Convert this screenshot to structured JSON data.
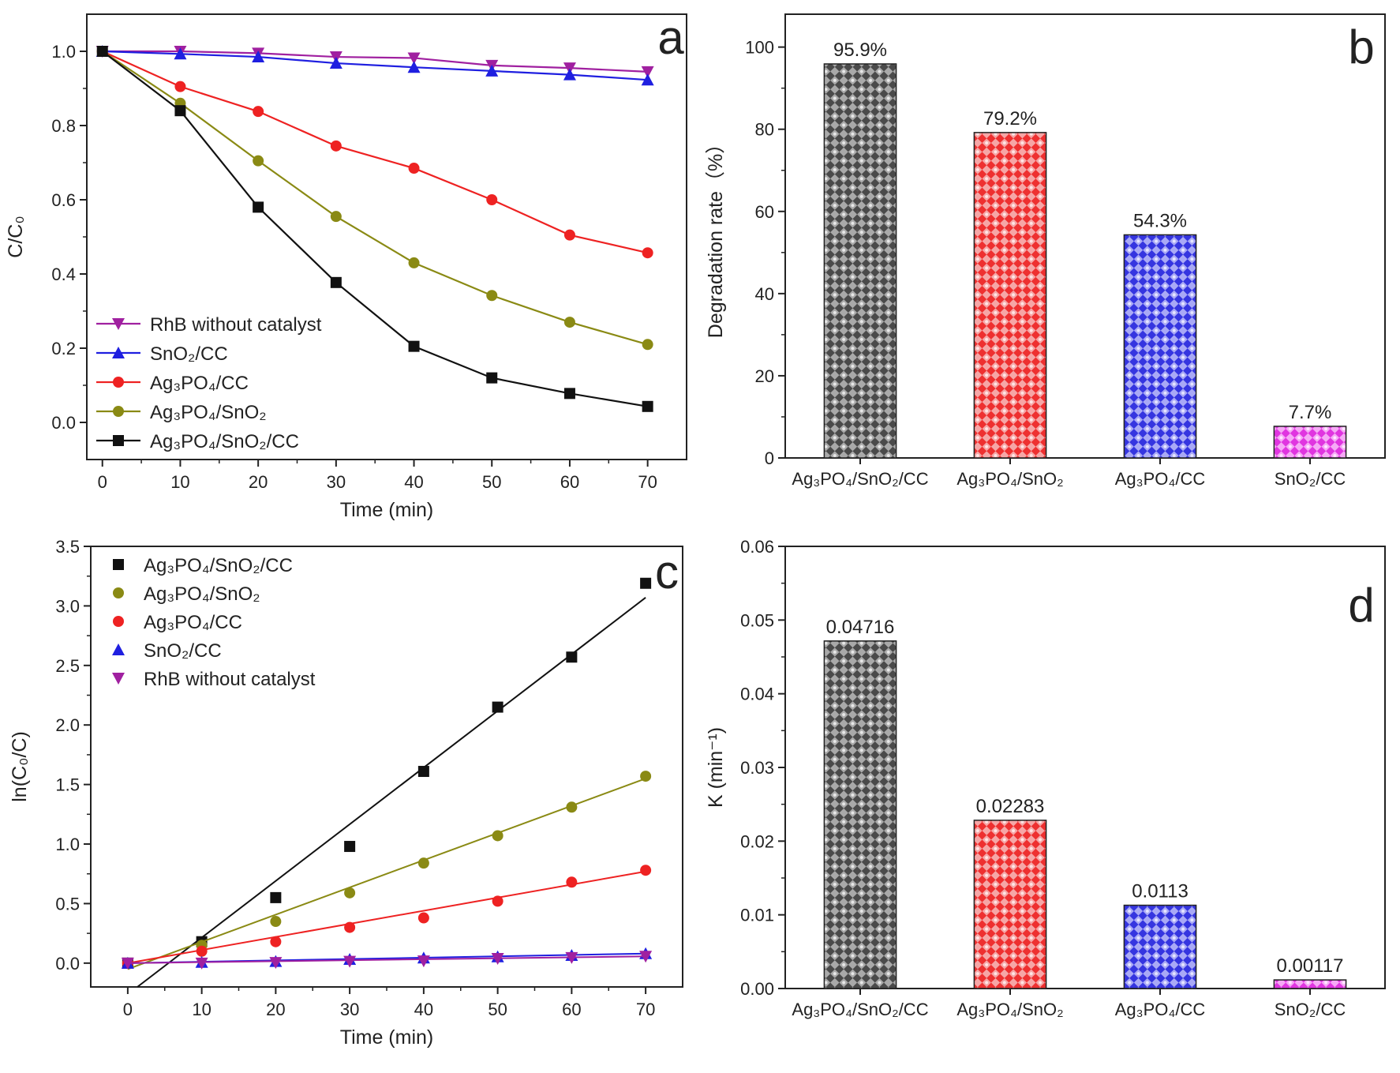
{
  "chart_data": [
    {
      "panel": "a",
      "type": "line",
      "xlabel": "Time (min)",
      "ylabel": "C/C₀",
      "xlim": [
        -2,
        75
      ],
      "ylim": [
        -0.1,
        1.1
      ],
      "xticks": [
        0,
        10,
        20,
        30,
        40,
        50,
        60,
        70
      ],
      "yticks": [
        0.0,
        0.2,
        0.4,
        0.6,
        0.8,
        1.0
      ],
      "x": [
        0,
        10,
        20,
        30,
        40,
        50,
        60,
        70
      ],
      "legend_position": "bottom-left",
      "series": [
        {
          "name": "RhB without catalyst",
          "color": "#a020a0",
          "marker": "triangle-down",
          "values": [
            1.0,
            1.0,
            0.995,
            0.985,
            0.982,
            0.962,
            0.955,
            0.945
          ]
        },
        {
          "name": "SnO₂/CC",
          "color": "#1f1fe0",
          "marker": "triangle-up",
          "values": [
            1.0,
            0.993,
            0.985,
            0.968,
            0.957,
            0.947,
            0.937,
            0.923
          ]
        },
        {
          "name": "Ag₃PO₄/CC",
          "color": "#ee2222",
          "marker": "circle",
          "values": [
            1.0,
            0.905,
            0.838,
            0.745,
            0.685,
            0.6,
            0.505,
            0.457
          ]
        },
        {
          "name": "Ag₃PO₄/SnO₂",
          "color": "#8a8a14",
          "marker": "circle",
          "values": [
            1.0,
            0.86,
            0.705,
            0.555,
            0.43,
            0.342,
            0.27,
            0.21
          ]
        },
        {
          "name": "Ag₃PO₄/SnO₂/CC",
          "color": "#111111",
          "marker": "square",
          "values": [
            1.0,
            0.84,
            0.58,
            0.377,
            0.205,
            0.12,
            0.078,
            0.043
          ]
        }
      ]
    },
    {
      "panel": "b",
      "type": "bar",
      "ylabel": "Degradation rate（%）",
      "ylim": [
        0,
        108
      ],
      "yticks": [
        0,
        20,
        40,
        60,
        80,
        100
      ],
      "categories": [
        "Ag₃PO₄/SnO₂/CC",
        "Ag₃PO₄/SnO₂",
        "Ag₃PO₄/CC",
        "SnO₂/CC"
      ],
      "values": [
        95.9,
        79.2,
        54.3,
        7.7
      ],
      "data_labels": [
        "95.9%",
        "79.2%",
        "54.3%",
        "7.7%"
      ],
      "colors": [
        "#777777",
        "#ee4444",
        "#4444ee",
        "#ee44ee"
      ]
    },
    {
      "panel": "c",
      "type": "scatter",
      "xlabel": "Time (min)",
      "ylabel": "ln(C₀/C)",
      "xlim": [
        -5,
        75
      ],
      "ylim": [
        -0.2,
        3.5
      ],
      "xticks": [
        0,
        10,
        20,
        30,
        40,
        50,
        60,
        70
      ],
      "yticks": [
        0.0,
        0.5,
        1.0,
        1.5,
        2.0,
        2.5,
        3.0,
        3.5
      ],
      "x": [
        0,
        10,
        20,
        30,
        40,
        50,
        60,
        70
      ],
      "legend_position": "top-left",
      "series": [
        {
          "name": "Ag₃PO₄/SnO₂/CC",
          "color": "#111111",
          "marker": "square",
          "values": [
            0.0,
            0.18,
            0.55,
            0.98,
            1.61,
            2.15,
            2.57,
            3.19
          ],
          "fit_line": [
            [
              1.3,
              -0.2
            ],
            [
              70,
              3.07
            ]
          ]
        },
        {
          "name": "Ag₃PO₄/SnO₂",
          "color": "#8a8a14",
          "marker": "circle",
          "values": [
            0.0,
            0.15,
            0.35,
            0.59,
            0.84,
            1.07,
            1.31,
            1.57
          ],
          "fit_line": [
            [
              0,
              -0.05
            ],
            [
              70,
              1.55
            ]
          ]
        },
        {
          "name": "Ag₃PO₄/CC",
          "color": "#ee2222",
          "marker": "circle",
          "values": [
            0.0,
            0.1,
            0.18,
            0.3,
            0.38,
            0.52,
            0.68,
            0.78
          ],
          "fit_line": [
            [
              0,
              0.0
            ],
            [
              70,
              0.77
            ]
          ]
        },
        {
          "name": "SnO₂/CC",
          "color": "#1f1fe0",
          "marker": "triangle-up",
          "values": [
            0.0,
            0.007,
            0.015,
            0.032,
            0.044,
            0.054,
            0.065,
            0.08
          ],
          "fit_line": [
            [
              0,
              0.0
            ],
            [
              70,
              0.08
            ]
          ]
        },
        {
          "name": "RhB without catalyst",
          "color": "#a020a0",
          "marker": "triangle-down",
          "values": [
            0.0,
            0.0,
            0.005,
            0.015,
            0.018,
            0.039,
            0.046,
            0.057
          ],
          "fit_line": [
            [
              0,
              0.0
            ],
            [
              70,
              0.057
            ]
          ]
        }
      ]
    },
    {
      "panel": "d",
      "type": "bar",
      "ylabel": "K (min⁻¹)",
      "ylim": [
        0,
        0.06
      ],
      "yticks": [
        0.0,
        0.01,
        0.02,
        0.03,
        0.04,
        0.05,
        0.06
      ],
      "ytick_labels": [
        "0.00",
        "0.01",
        "0.02",
        "0.03",
        "0.04",
        "0.05",
        "0.06"
      ],
      "categories": [
        "Ag₃PO₄/SnO₂/CC",
        "Ag₃PO₄/SnO₂",
        "Ag₃PO₄/CC",
        "SnO₂/CC"
      ],
      "values": [
        0.04716,
        0.02283,
        0.0113,
        0.00117
      ],
      "data_labels": [
        "0.04716",
        "0.02283",
        "0.0113",
        "0.00117"
      ],
      "colors": [
        "#777777",
        "#ee4444",
        "#4444ee",
        "#ee44ee"
      ]
    }
  ]
}
